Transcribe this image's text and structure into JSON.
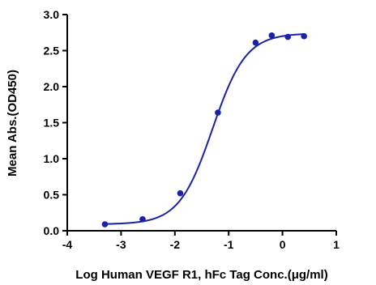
{
  "chart_data": {
    "type": "scatter",
    "xlabel": "Log  Human VEGF R1, hFc Tag Conc.(μg/ml)",
    "ylabel": "Mean Abs.(OD450)",
    "xlim": [
      -4,
      1
    ],
    "ylim": [
      0,
      3.0
    ],
    "x_ticks": [
      "-4",
      "-3",
      "-2",
      "-1",
      "0",
      "1"
    ],
    "y_ticks": [
      "0.0",
      "0.5",
      "1.0",
      "1.5",
      "2.0",
      "2.5",
      "3.0"
    ],
    "grid": false,
    "legend": "none",
    "series": [
      {
        "color": "#1a23a8",
        "points": [
          {
            "x": -3.3,
            "y": 0.09
          },
          {
            "x": -2.6,
            "y": 0.16
          },
          {
            "x": -1.9,
            "y": 0.52
          },
          {
            "x": -1.2,
            "y": 1.64
          },
          {
            "x": -0.5,
            "y": 2.61
          },
          {
            "x": -0.2,
            "y": 2.71
          },
          {
            "x": 0.1,
            "y": 2.69
          },
          {
            "x": 0.4,
            "y": 2.7
          }
        ],
        "fit": {
          "model": "4PL",
          "bottom": 0.09,
          "top": 2.74,
          "log_ec50": -1.3,
          "hill_slope": 1.4
        }
      }
    ]
  }
}
